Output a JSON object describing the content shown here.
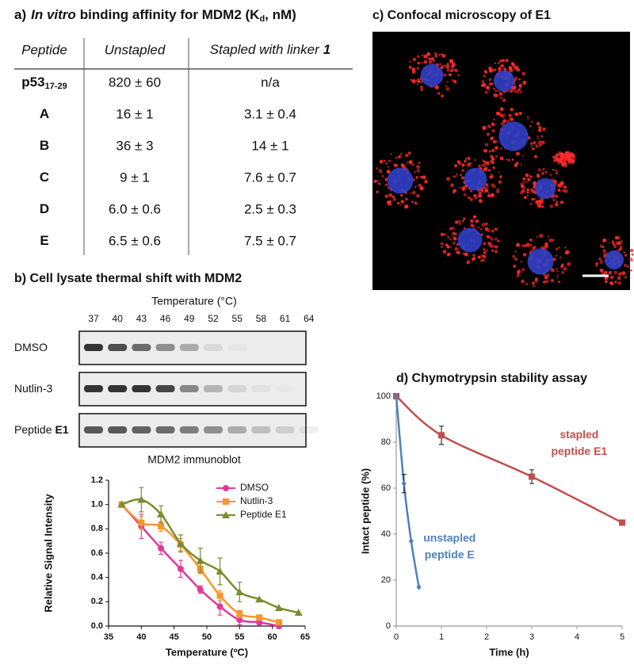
{
  "table": {
    "title": {
      "label": "a)",
      "italic": "In vitro",
      "text": "binding affinity for MDM2 (K",
      "sub": "d",
      "end": ", nM)"
    },
    "header": [
      "Peptide",
      "Unstapled",
      {
        "text": "Stapled with linker",
        "bold": "1"
      }
    ],
    "rows": [
      {
        "name": "p53",
        "sub": "17-29",
        "unstapled": "820 ± 60",
        "stapled": "n/a"
      },
      {
        "name": "A",
        "unstapled": "16 ± 1",
        "stapled": "3.1 ± 0.4"
      },
      {
        "name": "B",
        "unstapled": "36 ± 3",
        "stapled": "14 ± 1"
      },
      {
        "name": "C",
        "unstapled": "9 ± 1",
        "stapled": "7.6 ± 0.7"
      },
      {
        "name": "D",
        "unstapled": "6.0 ± 0.6",
        "stapled": "2.5 ± 0.3"
      },
      {
        "name": "E",
        "unstapled": "6.5 ± 0.6",
        "stapled": "7.5 ± 0.7"
      }
    ]
  },
  "blot": {
    "title": "b) Cell lysate thermal shift with MDM2",
    "axis_title": "Temperature (°C)",
    "temperatures": [
      37,
      40,
      43,
      46,
      49,
      52,
      55,
      58,
      61,
      64
    ],
    "lanes": [
      {
        "name": "DMSO",
        "bands": [
          1,
          0.85,
          0.7,
          0.5,
          0.35,
          0.1,
          0.03,
          0,
          0,
          0
        ]
      },
      {
        "name": "Nutlin-3",
        "bands": [
          1,
          1,
          1,
          0.9,
          0.55,
          0.3,
          0.12,
          0.05,
          0.02,
          0
        ]
      },
      {
        "name": "Peptide",
        "bold": "E1",
        "bands": [
          0.8,
          0.8,
          0.75,
          0.7,
          0.6,
          0.5,
          0.35,
          0.25,
          0.15,
          0.08
        ]
      }
    ],
    "caption": "MDM2 immunoblot"
  },
  "microscopy": {
    "title": "c) Confocal microscopy of E1"
  },
  "chart_data": [
    {
      "type": "line",
      "xlabel": "Temperature (ºC)",
      "ylabel": "Relative Signal Intensity",
      "x": [
        37,
        40,
        43,
        46,
        49,
        52,
        55,
        58,
        61,
        64
      ],
      "xlim": [
        35,
        65
      ],
      "xticks": [
        35,
        40,
        45,
        50,
        55,
        60,
        65
      ],
      "ylim": [
        0,
        1.2
      ],
      "yticks": [
        {
          "value": 0,
          "label": "0.0"
        },
        0.2,
        0.4,
        0.6,
        0.8,
        {
          "value": 1,
          "label": "1.0"
        },
        1.2
      ],
      "legend": "upper right",
      "series": [
        {
          "name": "DMSO",
          "color": "#e0399a",
          "marker": "circle",
          "values": [
            1.0,
            0.82,
            0.64,
            0.47,
            0.3,
            0.16,
            0.05,
            0.03,
            0.0,
            null
          ],
          "errors": [
            0,
            0.1,
            0.05,
            0.07,
            0.03,
            0.07,
            0.04,
            0.02,
            0.02,
            null
          ]
        },
        {
          "name": "Nutlin-3",
          "color": "#f7962f",
          "marker": "square",
          "values": [
            1.0,
            0.85,
            0.82,
            0.67,
            0.47,
            0.25,
            0.1,
            0.07,
            0.03,
            null
          ],
          "errors": [
            0,
            0.05,
            0.04,
            0.05,
            0.04,
            0.04,
            0.03,
            0.02,
            0.01,
            null
          ]
        },
        {
          "name": "Peptide E1",
          "color": "#7b8c2c",
          "marker": "triangle",
          "values": [
            1.0,
            1.04,
            0.92,
            0.68,
            0.54,
            0.45,
            0.28,
            0.22,
            0.15,
            0.11
          ],
          "errors": [
            0,
            0.1,
            0.07,
            0.07,
            0.1,
            0.11,
            0.08,
            0,
            0,
            0
          ]
        }
      ]
    },
    {
      "type": "line",
      "title": "d) Chymotrypsin stability assay",
      "xlabel": "Time (h)",
      "ylabel": "Intact peptide (%)",
      "xlim": [
        0,
        5
      ],
      "xticks": [
        0,
        1,
        2,
        3,
        4,
        5
      ],
      "ylim": [
        0,
        100
      ],
      "yticks": [
        0,
        20,
        40,
        60,
        80,
        100
      ],
      "series": [
        {
          "name": "stapled peptide E1",
          "color": "#c0504d",
          "marker": "square",
          "x": [
            0,
            1,
            3,
            5
          ],
          "values": [
            100,
            83,
            65,
            45
          ],
          "errors": [
            0,
            4,
            3,
            0
          ]
        },
        {
          "name": "unstapled peptide E",
          "color": "#4f81bd",
          "marker": "diamond",
          "x": [
            0,
            0.17,
            0.33,
            0.5
          ],
          "values": [
            100,
            62,
            37,
            17
          ],
          "errors": [
            0,
            4,
            0,
            0
          ]
        }
      ],
      "annotations": [
        {
          "lines": [
            "stapled",
            "peptide E1"
          ],
          "color": "#c0504d"
        },
        {
          "lines": [
            "unstapled",
            "peptide E"
          ],
          "color": "#4f81bd"
        }
      ]
    }
  ]
}
